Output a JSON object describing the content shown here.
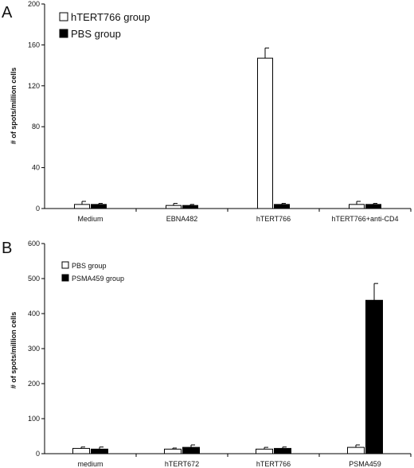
{
  "chart_data": [
    {
      "panel": "A",
      "type": "bar",
      "categories": [
        "Medium",
        "EBNA482",
        "hTERT766",
        "hTERT766+anti-CD4"
      ],
      "series": [
        {
          "name": "hTERT766 group",
          "fill": "#ffffff",
          "values": [
            4,
            3,
            147,
            4
          ],
          "errors": [
            3,
            2,
            10,
            3
          ]
        },
        {
          "name": "PBS group",
          "fill": "#000000",
          "values": [
            4,
            3,
            4,
            4
          ],
          "errors": [
            1,
            1,
            1,
            1
          ]
        }
      ],
      "ylabel": "# of spots/million cells",
      "ylim": [
        0,
        200
      ],
      "yticks": [
        0,
        40,
        80,
        120,
        160,
        200
      ],
      "grid": false,
      "legend_position": "top-left"
    },
    {
      "panel": "B",
      "type": "bar",
      "categories": [
        "medium",
        "hTERT672",
        "hTERT766",
        "PSMA459"
      ],
      "series": [
        {
          "name": "PBS group",
          "fill": "#ffffff",
          "values": [
            15,
            13,
            13,
            18
          ],
          "errors": [
            4,
            3,
            5,
            7
          ]
        },
        {
          "name": "PSMA459 group",
          "fill": "#000000",
          "values": [
            13,
            18,
            15,
            438
          ],
          "errors": [
            6,
            7,
            4,
            48
          ]
        }
      ],
      "ylabel": "# of spots/million cells",
      "ylim": [
        0,
        600
      ],
      "yticks": [
        0,
        100,
        200,
        300,
        400,
        500,
        600
      ],
      "grid": false,
      "legend_position": "top-left"
    }
  ]
}
